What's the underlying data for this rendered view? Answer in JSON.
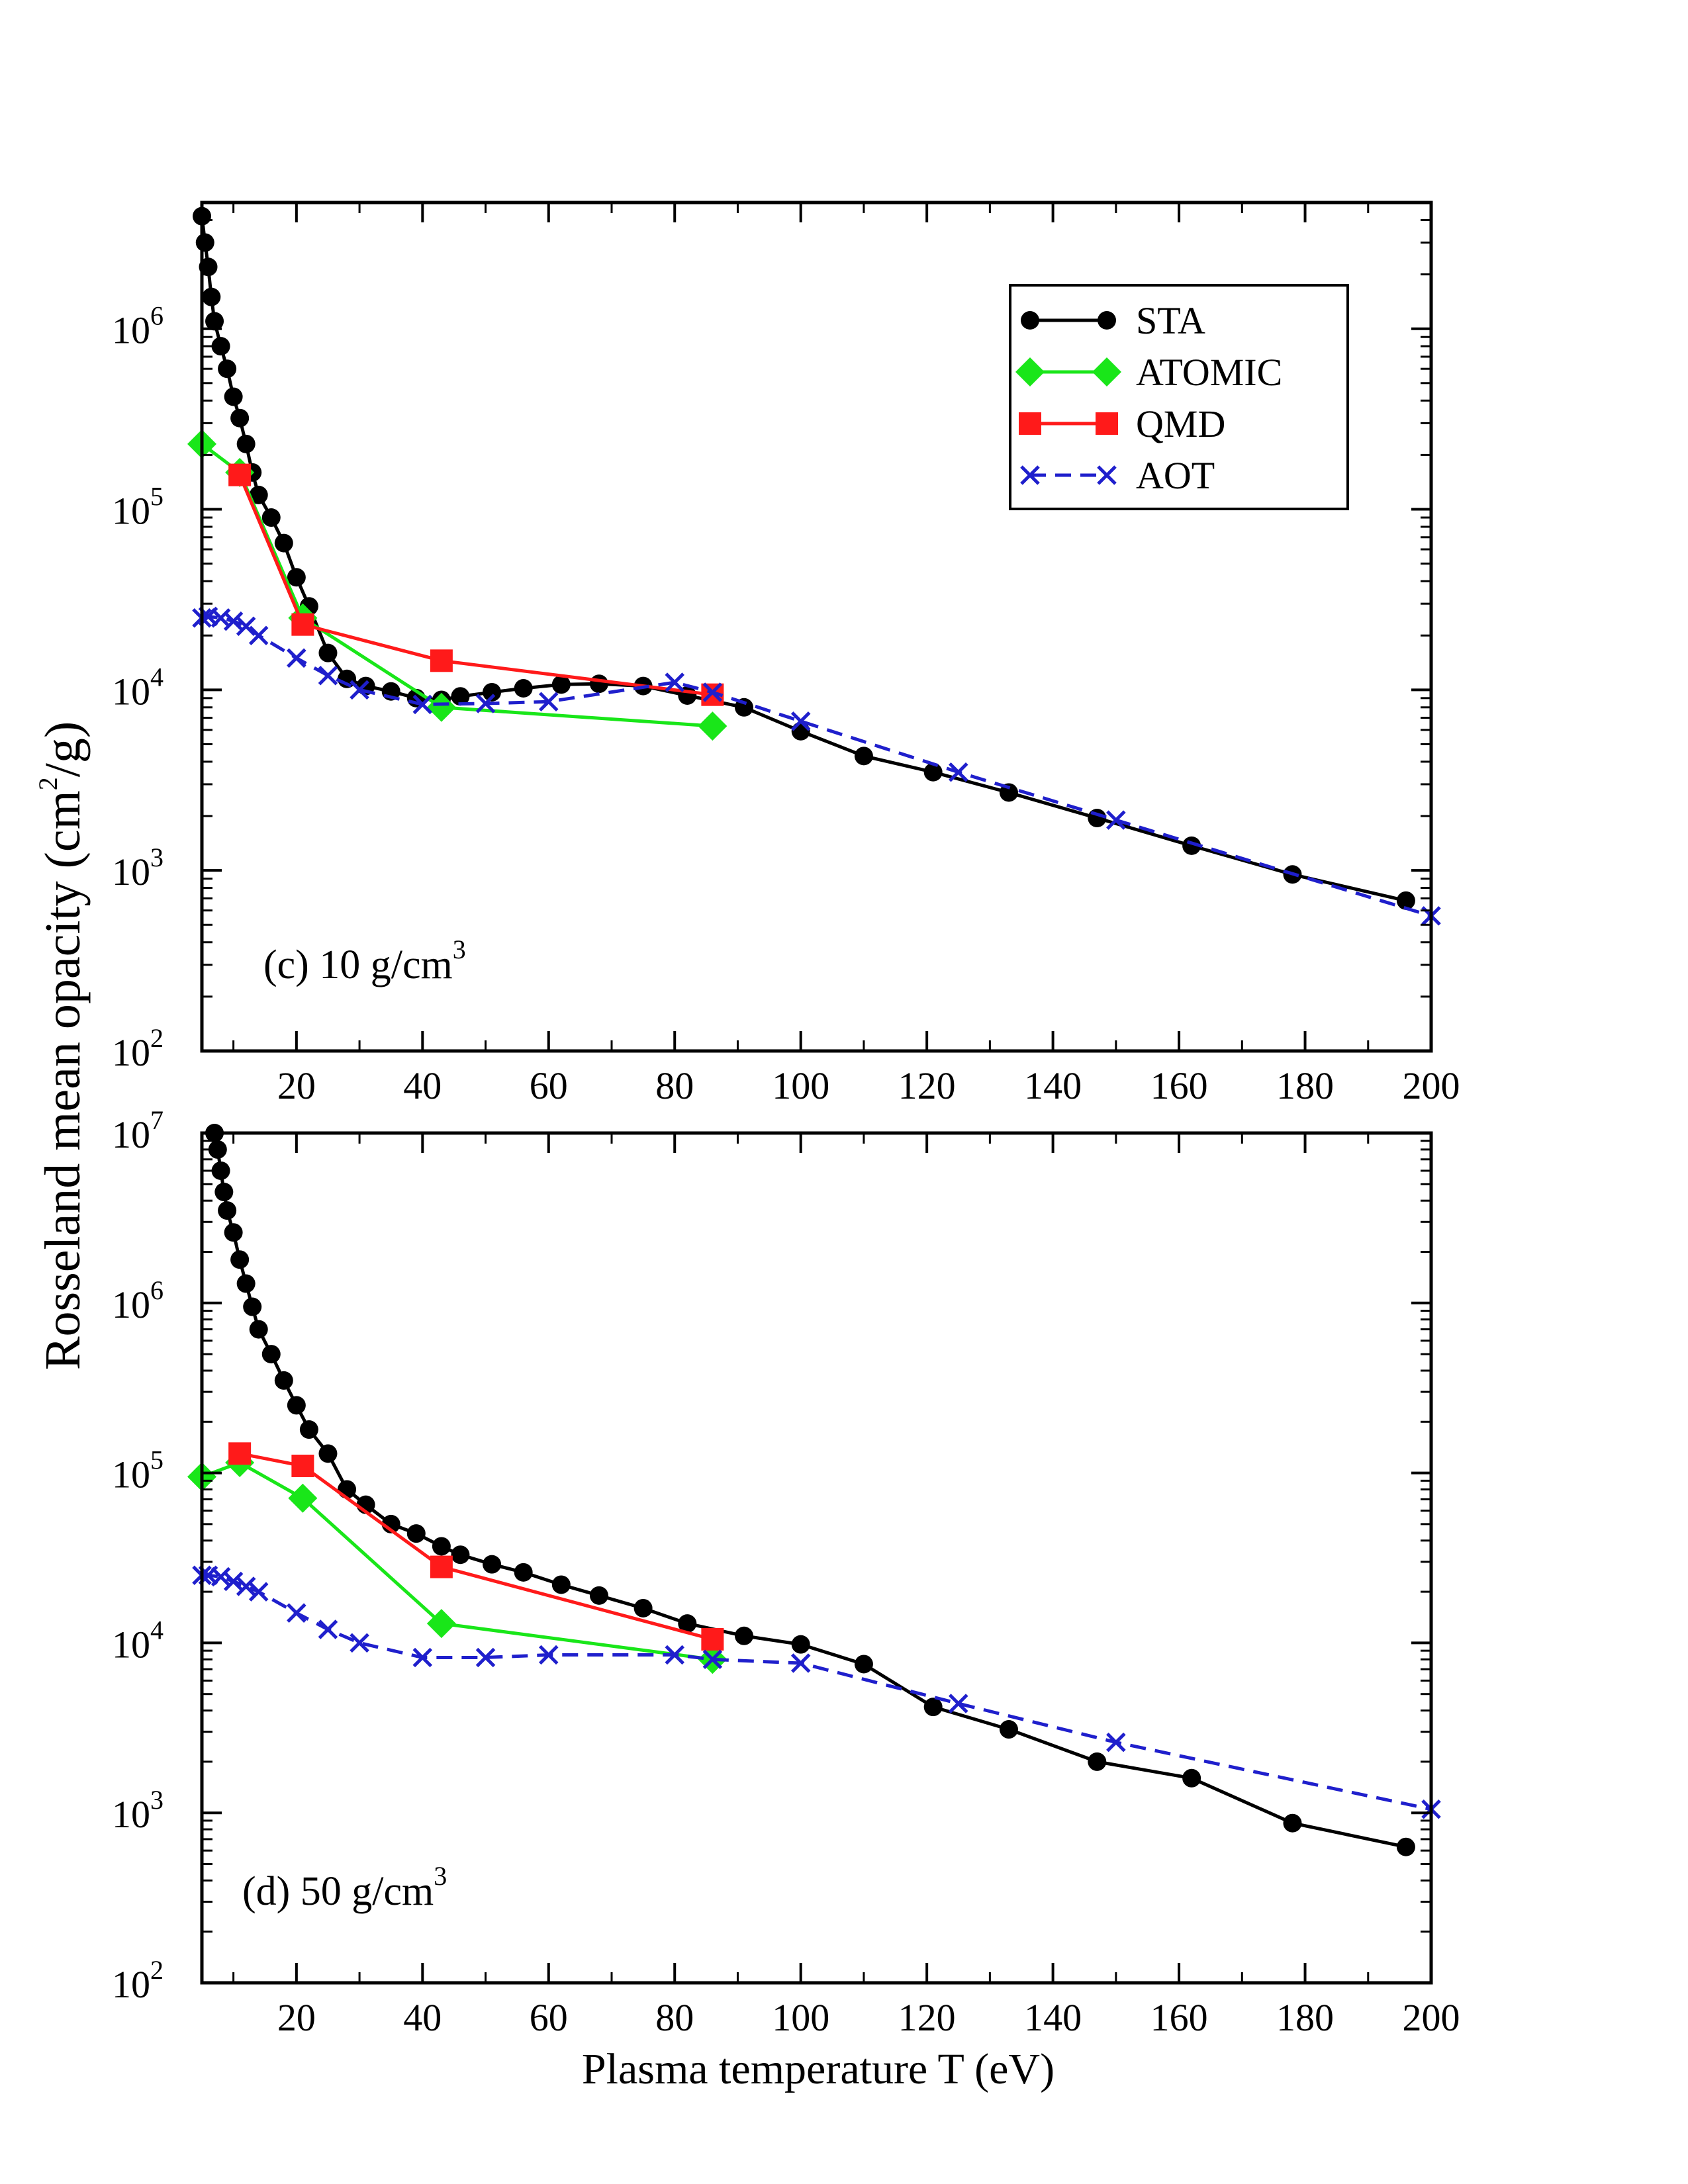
{
  "figure": {
    "ylabel": "Rosseland mean opacity (cm",
    "ylabel_sup": "2",
    "ylabel_end": "/g)",
    "xlabel": "Plasma temperature T (eV)"
  },
  "legend": {
    "items": [
      {
        "label": "STA",
        "color": "#000000",
        "marker": "circle",
        "dash": false
      },
      {
        "label": "ATOMIC",
        "color": "#19e619",
        "marker": "diamond",
        "dash": false
      },
      {
        "label": "QMD",
        "color": "#ff1a1a",
        "marker": "square",
        "dash": false
      },
      {
        "label": "AOT",
        "color": "#1f1fcc",
        "marker": "x",
        "dash": true
      }
    ]
  },
  "chart_data": [
    {
      "type": "line",
      "panel_label": "(c) 10 g/cm",
      "panel_label_sup": "3",
      "x_ticks": [
        "20",
        "40",
        "60",
        "80",
        "100",
        "120",
        "140",
        "160",
        "180",
        "200"
      ],
      "y_ticks": [
        {
          "base": "10",
          "exp": "2",
          "value": 100
        },
        {
          "base": "10",
          "exp": "3",
          "value": 1000
        },
        {
          "base": "10",
          "exp": "4",
          "value": 10000
        },
        {
          "base": "10",
          "exp": "5",
          "value": 100000
        },
        {
          "base": "10",
          "exp": "6",
          "value": 1000000
        }
      ],
      "xlim": [
        5,
        200
      ],
      "ylim": [
        100,
        5000000
      ],
      "yscale": "log",
      "legend_position": "top-right",
      "series": [
        {
          "name": "STA",
          "color": "#000000",
          "marker": "circle",
          "dash": false,
          "x": [
            5,
            5.5,
            6,
            6.5,
            7,
            8,
            9,
            10,
            11,
            12,
            13,
            14,
            16,
            18,
            20,
            22,
            25,
            28,
            31,
            35,
            39,
            43,
            46,
            51,
            56,
            62,
            68,
            75,
            82,
            91,
            100,
            110,
            121,
            133,
            147,
            162,
            178,
            196
          ],
          "y": [
            4200000,
            3000000,
            2200000,
            1500000,
            1100000,
            800000,
            600000,
            420000,
            320000,
            230000,
            160000,
            120000,
            90000,
            65000,
            42000,
            29000,
            16000,
            11500,
            10500,
            9800,
            9000,
            8800,
            9200,
            9700,
            10200,
            10700,
            10800,
            10500,
            9300,
            8000,
            5900,
            4300,
            3500,
            2700,
            1950,
            1370,
            950,
            680
          ]
        },
        {
          "name": "ATOMIC",
          "color": "#19e619",
          "marker": "diamond",
          "dash": false,
          "x": [
            5,
            11,
            21,
            43,
            86
          ],
          "y": [
            230000,
            160000,
            25000,
            8000,
            6300
          ]
        },
        {
          "name": "QMD",
          "color": "#ff1a1a",
          "marker": "square",
          "dash": false,
          "x": [
            11,
            21,
            43,
            86
          ],
          "y": [
            155000,
            23000,
            14500,
            9400
          ]
        },
        {
          "name": "AOT",
          "color": "#1f1fcc",
          "marker": "x",
          "dash": true,
          "x": [
            5,
            6,
            8,
            10,
            12,
            14,
            20,
            25,
            30,
            40,
            50,
            60,
            80,
            86,
            100,
            125,
            150,
            200
          ],
          "y": [
            25000,
            25500,
            25000,
            24000,
            22500,
            20000,
            15000,
            12000,
            10000,
            8300,
            8400,
            8600,
            11000,
            9700,
            6700,
            3500,
            1900,
            560
          ]
        }
      ]
    },
    {
      "type": "line",
      "panel_label": "(d) 50 g/cm",
      "panel_label_sup": "3",
      "x_ticks": [
        "20",
        "40",
        "60",
        "80",
        "100",
        "120",
        "140",
        "160",
        "180",
        "200"
      ],
      "y_ticks": [
        {
          "base": "10",
          "exp": "2",
          "value": 100
        },
        {
          "base": "10",
          "exp": "3",
          "value": 1000
        },
        {
          "base": "10",
          "exp": "4",
          "value": 10000
        },
        {
          "base": "10",
          "exp": "5",
          "value": 100000
        },
        {
          "base": "10",
          "exp": "6",
          "value": 1000000
        },
        {
          "base": "10",
          "exp": "7",
          "value": 10000000
        }
      ],
      "xlim": [
        5,
        200
      ],
      "ylim": [
        100,
        10000000
      ],
      "yscale": "log",
      "series": [
        {
          "name": "STA",
          "color": "#000000",
          "marker": "circle",
          "dash": false,
          "x": [
            7,
            7.5,
            8,
            8.5,
            9,
            10,
            11,
            12,
            13,
            14,
            16,
            18,
            20,
            22,
            25,
            28,
            31,
            35,
            39,
            43,
            46,
            51,
            56,
            62,
            68,
            75,
            82,
            91,
            100,
            110,
            121,
            133,
            147,
            162,
            178,
            196
          ],
          "y": [
            10000000,
            8000000,
            6000000,
            4500000,
            3500000,
            2600000,
            1800000,
            1300000,
            950000,
            700000,
            500000,
            350000,
            250000,
            180000,
            130000,
            80000,
            65000,
            50000,
            44000,
            37000,
            33000,
            29000,
            26000,
            22000,
            19000,
            16000,
            13000,
            11000,
            9800,
            7500,
            4200,
            3100,
            2000,
            1600,
            870,
            630
          ]
        },
        {
          "name": "ATOMIC",
          "color": "#19e619",
          "marker": "diamond",
          "dash": false,
          "x": [
            5,
            11,
            21,
            43,
            86
          ],
          "y": [
            95000,
            115000,
            71000,
            13000,
            8000
          ]
        },
        {
          "name": "QMD",
          "color": "#ff1a1a",
          "marker": "square",
          "dash": false,
          "x": [
            11,
            21,
            43,
            86
          ],
          "y": [
            130000,
            110000,
            28000,
            10500
          ]
        },
        {
          "name": "AOT",
          "color": "#1f1fcc",
          "marker": "x",
          "dash": true,
          "x": [
            5,
            6,
            8,
            10,
            12,
            14,
            20,
            25,
            30,
            40,
            50,
            60,
            80,
            86,
            100,
            125,
            150,
            200
          ],
          "y": [
            25000,
            25000,
            24500,
            23000,
            21500,
            20000,
            15000,
            12000,
            10000,
            8200,
            8200,
            8500,
            8500,
            8000,
            7600,
            4400,
            2600,
            1050
          ]
        }
      ]
    }
  ]
}
